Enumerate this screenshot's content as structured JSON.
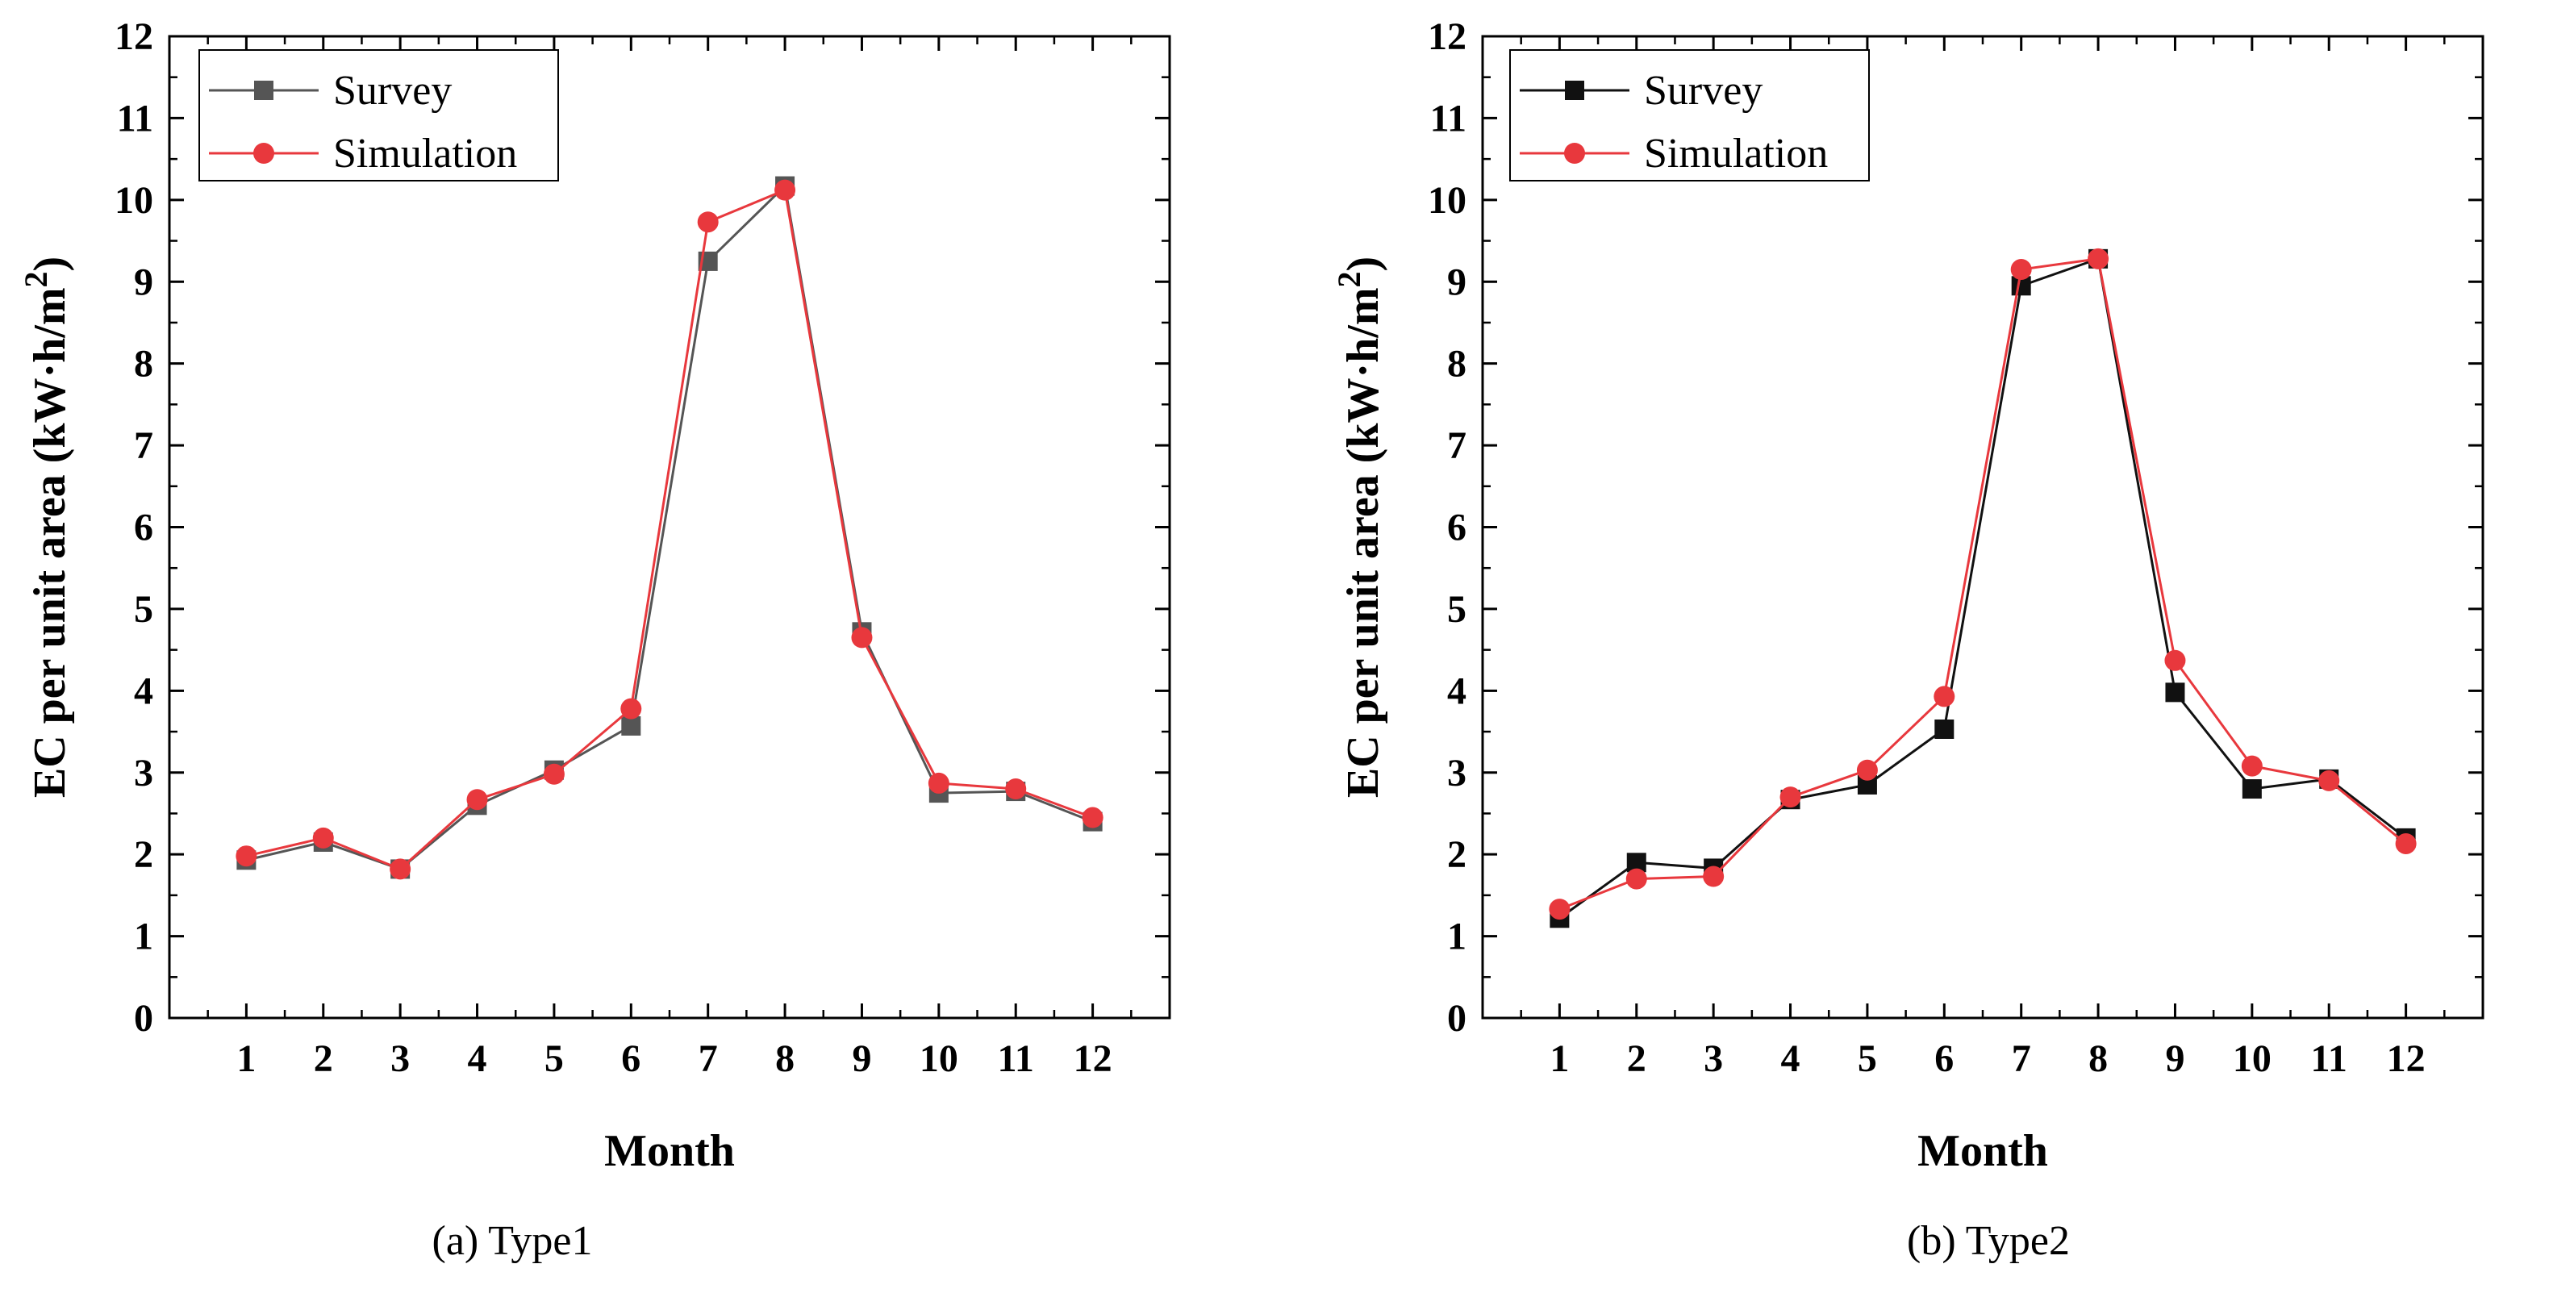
{
  "chart_data": [
    {
      "type": "line",
      "caption": "(a) Type1",
      "xlabel": "Month",
      "ylabel": "EC per unit area (kW·h/m²)",
      "ylabel_parts": {
        "main": "EC per unit area (kW·h/m",
        "sup": "2",
        "end": ")"
      },
      "categories": [
        "1",
        "2",
        "3",
        "4",
        "5",
        "6",
        "7",
        "8",
        "9",
        "10",
        "11",
        "12"
      ],
      "x": [
        1,
        2,
        3,
        4,
        5,
        6,
        7,
        8,
        9,
        10,
        11,
        12
      ],
      "yticks": [
        "0",
        "1",
        "2",
        "3",
        "4",
        "5",
        "6",
        "7",
        "8",
        "9",
        "10",
        "11",
        "12"
      ],
      "ylim": [
        0,
        12
      ],
      "xlim": [
        0,
        13
      ],
      "legend": "top-left",
      "grid": false,
      "series": [
        {
          "name": "Survey",
          "color": "#555555",
          "marker": "square",
          "values": [
            1.93,
            2.15,
            1.82,
            2.6,
            3.03,
            3.57,
            9.25,
            10.17,
            4.72,
            2.75,
            2.77,
            2.4
          ]
        },
        {
          "name": "Simulation",
          "color": "#e8383d",
          "marker": "circle",
          "values": [
            1.98,
            2.2,
            1.82,
            2.67,
            2.98,
            3.78,
            9.73,
            10.12,
            4.65,
            2.87,
            2.8,
            2.45
          ]
        }
      ]
    },
    {
      "type": "line",
      "caption": "(b) Type2",
      "xlabel": "Month",
      "ylabel": "EC per unit area (kW·h/m²)",
      "ylabel_parts": {
        "main": "EC per unit area (kW·h/m",
        "sup": "2",
        "end": ")"
      },
      "categories": [
        "1",
        "2",
        "3",
        "4",
        "5",
        "6",
        "7",
        "8",
        "9",
        "10",
        "11",
        "12"
      ],
      "x": [
        1,
        2,
        3,
        4,
        5,
        6,
        7,
        8,
        9,
        10,
        11,
        12
      ],
      "yticks": [
        "0",
        "1",
        "2",
        "3",
        "4",
        "5",
        "6",
        "7",
        "8",
        "9",
        "10",
        "11",
        "12"
      ],
      "ylim": [
        0,
        12
      ],
      "xlim": [
        0,
        13
      ],
      "legend": "top-left",
      "grid": false,
      "series": [
        {
          "name": "Survey",
          "color": "#111111",
          "marker": "square",
          "values": [
            1.22,
            1.9,
            1.83,
            2.67,
            2.85,
            3.53,
            8.95,
            9.28,
            3.98,
            2.8,
            2.92,
            2.2
          ]
        },
        {
          "name": "Simulation",
          "color": "#e8383d",
          "marker": "circle",
          "values": [
            1.33,
            1.7,
            1.73,
            2.7,
            3.03,
            3.93,
            9.15,
            9.28,
            4.37,
            3.08,
            2.9,
            2.13
          ]
        }
      ]
    }
  ]
}
